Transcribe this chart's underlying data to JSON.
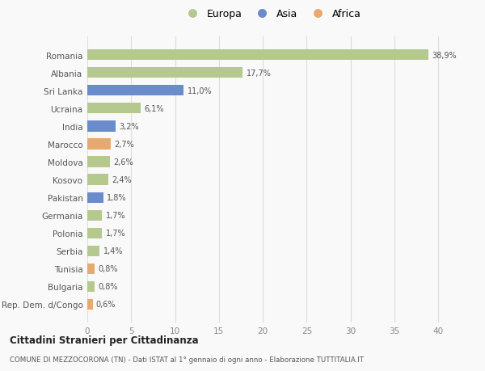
{
  "countries": [
    "Rep. Dem. d/Congo",
    "Bulgaria",
    "Tunisia",
    "Serbia",
    "Polonia",
    "Germania",
    "Pakistan",
    "Kosovo",
    "Moldova",
    "Marocco",
    "India",
    "Ucraina",
    "Sri Lanka",
    "Albania",
    "Romania"
  ],
  "values": [
    0.6,
    0.8,
    0.8,
    1.4,
    1.7,
    1.7,
    1.8,
    2.4,
    2.6,
    2.7,
    3.2,
    6.1,
    11.0,
    17.7,
    38.9
  ],
  "labels": [
    "0,6%",
    "0,8%",
    "0,8%",
    "1,4%",
    "1,7%",
    "1,7%",
    "1,8%",
    "2,4%",
    "2,6%",
    "2,7%",
    "3,2%",
    "6,1%",
    "11,0%",
    "17,7%",
    "38,9%"
  ],
  "categories": [
    "Africa",
    "Europa",
    "Africa",
    "Europa",
    "Europa",
    "Europa",
    "Asia",
    "Europa",
    "Europa",
    "Africa",
    "Asia",
    "Europa",
    "Asia",
    "Europa",
    "Europa"
  ],
  "colors": {
    "Europa": "#b5c98e",
    "Asia": "#6b8cca",
    "Africa": "#e8a96e"
  },
  "xlim": [
    0,
    42
  ],
  "xticks": [
    0,
    5,
    10,
    15,
    20,
    25,
    30,
    35,
    40
  ],
  "title_main": "Cittadini Stranieri per Cittadinanza",
  "title_sub": "COMUNE DI MEZZOCORONA (TN) - Dati ISTAT al 1° gennaio di ogni anno - Elaborazione TUTTITALIA.IT",
  "bg_color": "#f9f9f9",
  "grid_color": "#dddddd",
  "bar_height": 0.6
}
